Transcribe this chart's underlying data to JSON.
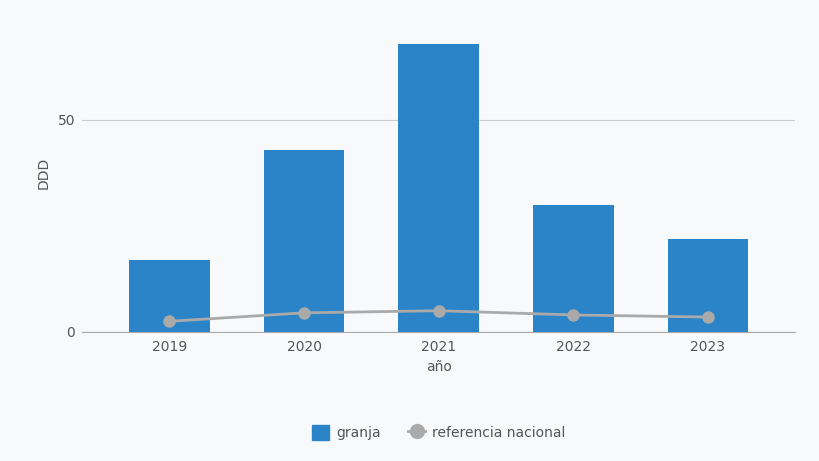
{
  "years": [
    2019,
    2020,
    2021,
    2022,
    2023
  ],
  "granja_values": [
    17,
    43,
    68,
    30,
    22
  ],
  "referencia_values": [
    2.5,
    4.5,
    5.0,
    4.0,
    3.5
  ],
  "bar_color": "#2b84c8",
  "line_color": "#aaaaaa",
  "line_marker_color": "#aaaaaa",
  "background_color": "#f8f9fa",
  "ylabel": "DDD",
  "xlabel": "año",
  "yticks": [
    0,
    50
  ],
  "ylim": [
    0,
    75
  ],
  "legend_granja": "granja",
  "legend_ref": "referencia nacional",
  "bar_width": 0.6,
  "grid_color": "#cccccc",
  "tick_fontsize": 10,
  "label_fontsize": 10
}
